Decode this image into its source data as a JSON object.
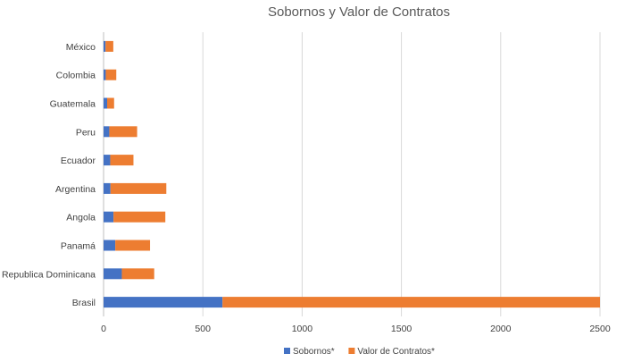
{
  "chart_data": {
    "type": "bar",
    "orientation": "horizontal",
    "stacked": true,
    "title": "Sobornos y Valor de Contratos",
    "xlabel": "",
    "ylabel": "",
    "xlim": [
      0,
      2500
    ],
    "x_ticks": [
      "0",
      "500",
      "1000",
      "1500",
      "2000",
      "2500"
    ],
    "grid": true,
    "legend_position": "bottom",
    "categories": [
      "México",
      "Colombia",
      "Guatemala",
      "Peru",
      "Ecuador",
      "Argentina",
      "Angola",
      "Panamá",
      "Republica Dominicana",
      "Brasil"
    ],
    "series": [
      {
        "name": "Sobornos*",
        "color": "#4472c4",
        "values": [
          10,
          11,
          18,
          29,
          33.5,
          35,
          50,
          59,
          92,
          599
        ]
      },
      {
        "name": "Valor de Contratos*",
        "color": "#ed7d31",
        "values": [
          39,
          53,
          35,
          140,
          117,
          281,
          261,
          175,
          163,
          1901
        ]
      }
    ]
  }
}
